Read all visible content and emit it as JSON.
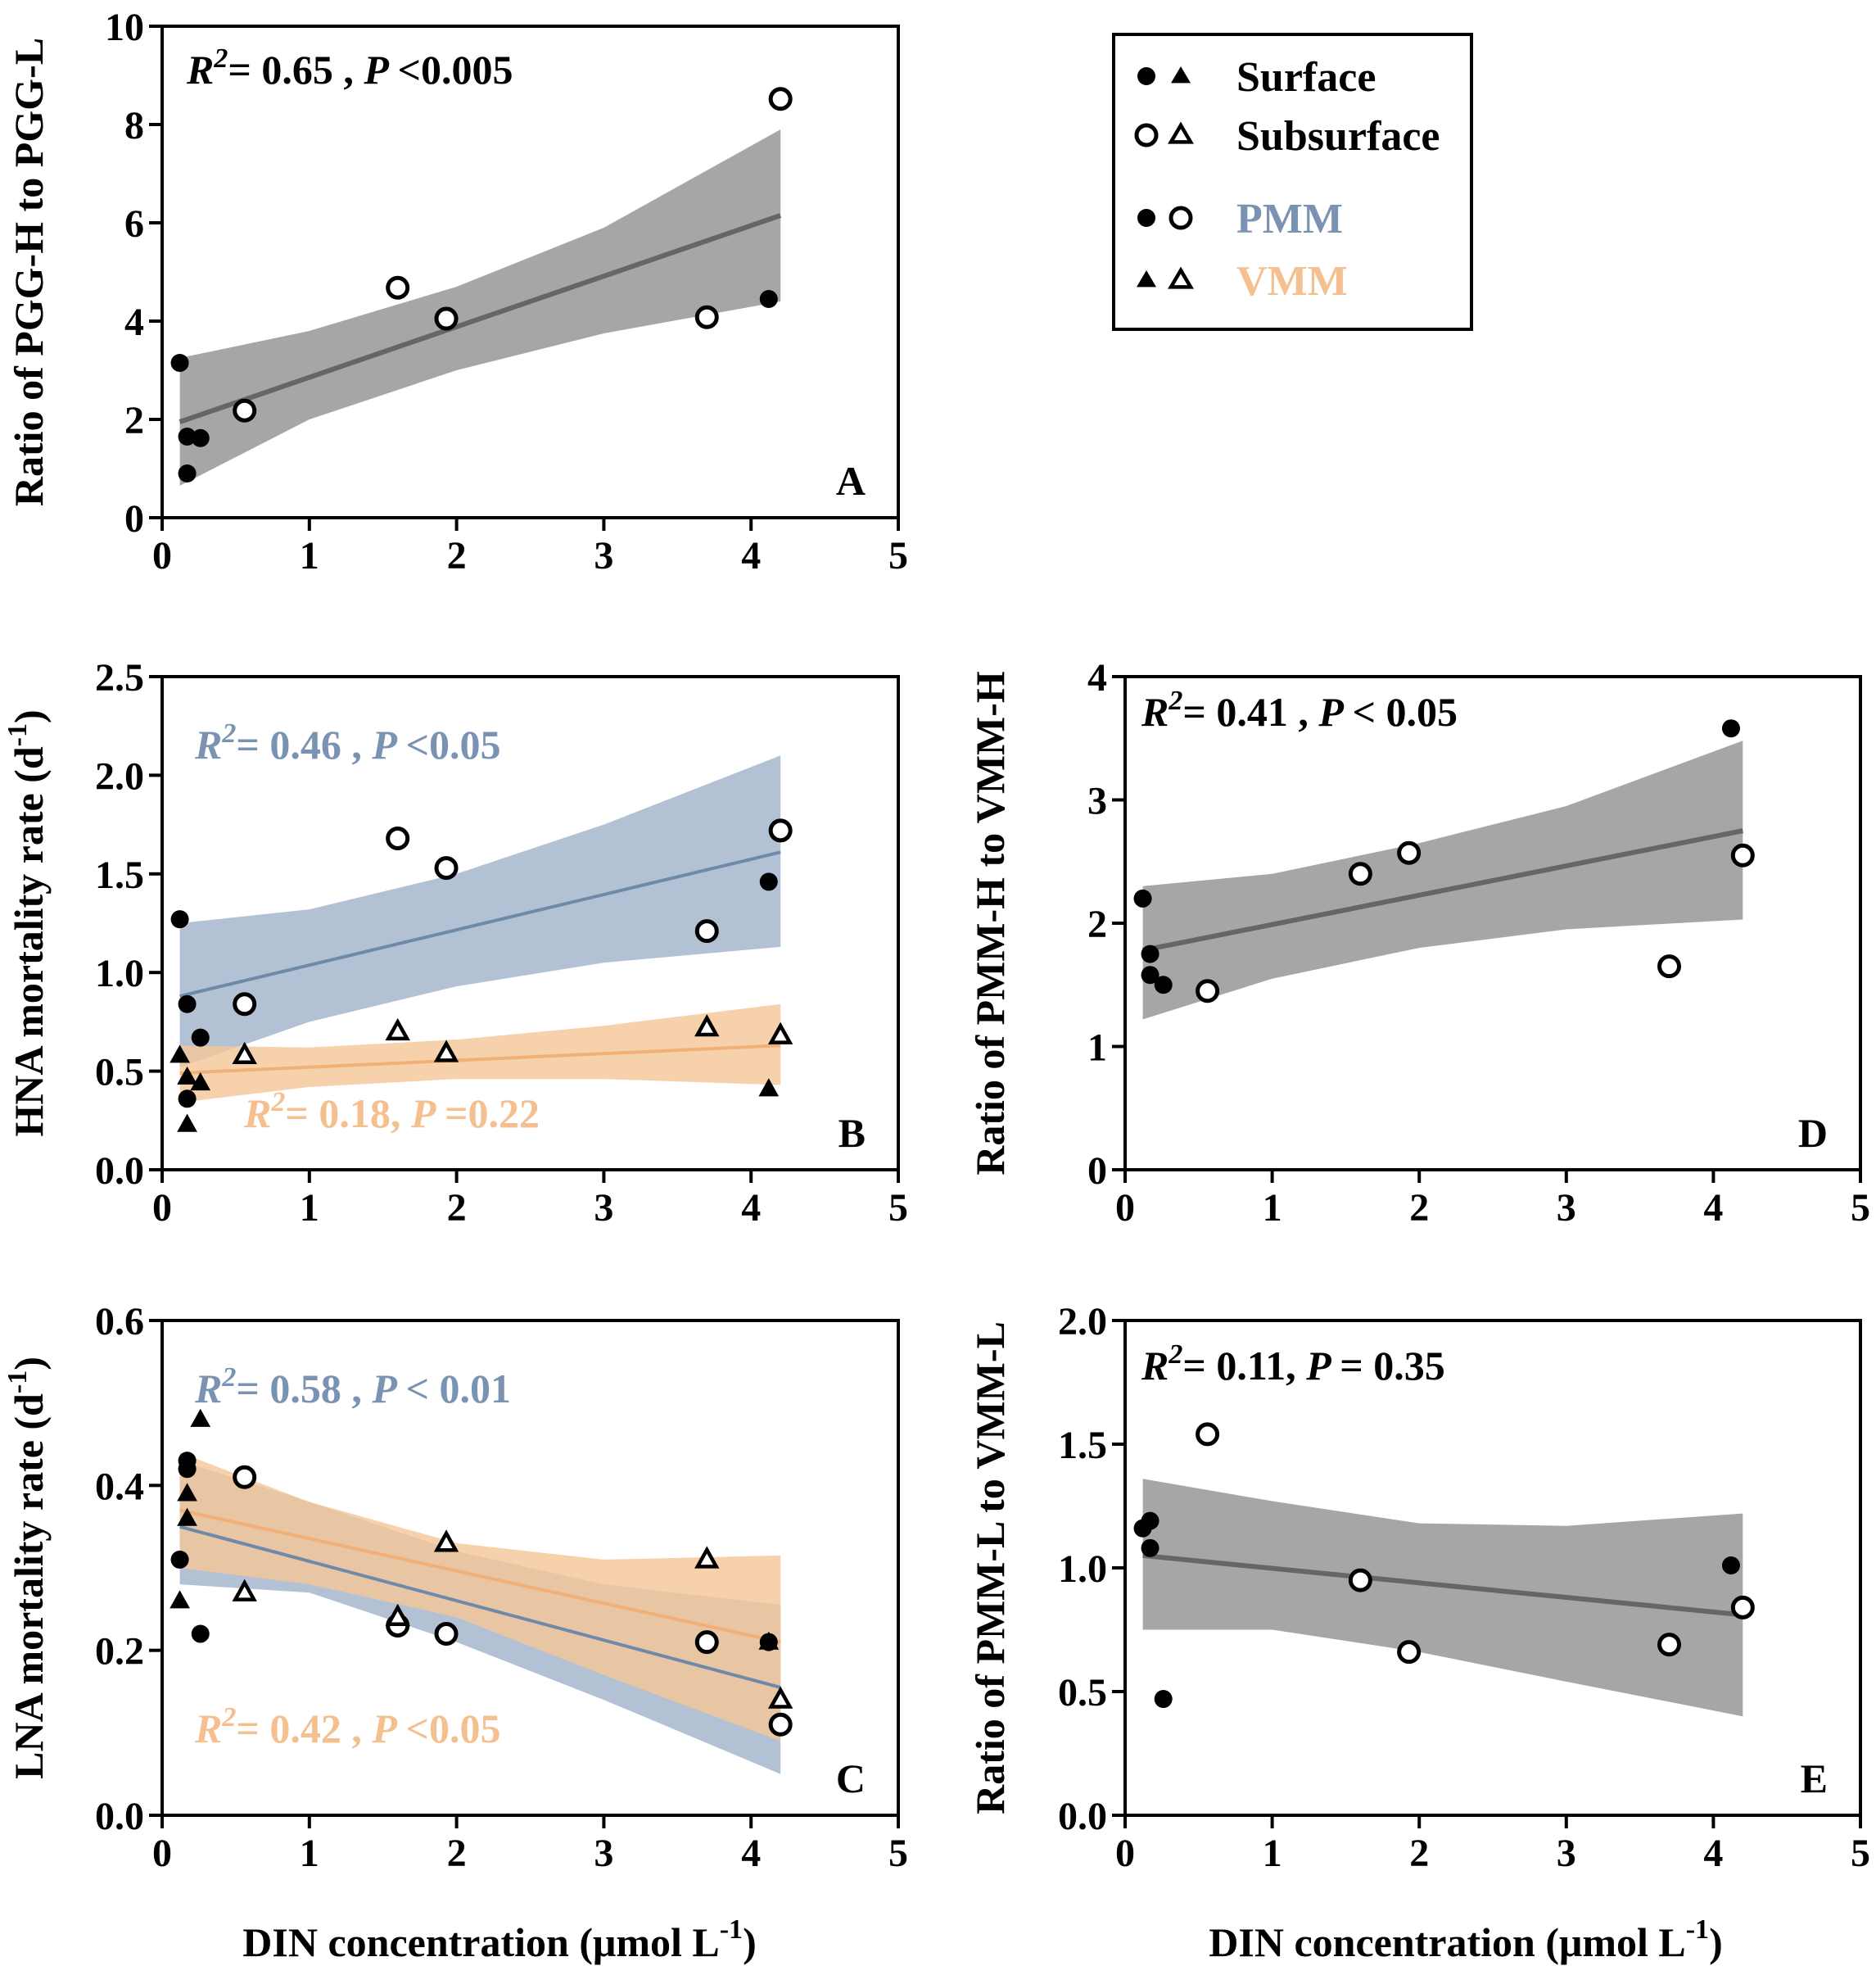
{
  "figure": {
    "x_axis_label_bottom": "DIN concentration (μmol L",
    "x_axis_label_sup": "-1",
    "x_axis_label_close": ")"
  },
  "legend": {
    "entries": [
      {
        "label": "Surface",
        "color": "#000000",
        "markers": [
          "filled-circle",
          "filled-triangle"
        ]
      },
      {
        "label": "Subsurface",
        "color": "#000000",
        "markers": [
          "open-circle",
          "open-triangle"
        ]
      },
      {
        "label": "PMM",
        "color": "#7b93b2",
        "markers": [
          "filled-circle",
          "open-circle"
        ]
      },
      {
        "label": "VMM",
        "color": "#f4c08f",
        "markers": [
          "filled-triangle",
          "open-triangle"
        ]
      }
    ]
  },
  "colors": {
    "pmm_line": "#6f8aa8",
    "pmm_band": "#9fb1c9",
    "vmm_line": "#f1b078",
    "vmm_band": "#f5c596",
    "gray_line": "#666666",
    "gray_band": "#a6a6a6",
    "pmm_text": "#7b93b2",
    "vmm_text": "#f4c08f"
  },
  "chart_data": [
    {
      "id": "A",
      "type": "scatter",
      "panel_label": "A",
      "ylabel": "Ratio of PGG-H to PGG-L",
      "xlabel": "",
      "xlim": [
        0,
        5
      ],
      "ylim": [
        0,
        10
      ],
      "xticks": [
        "0",
        "1",
        "2",
        "3",
        "4",
        "5"
      ],
      "yticks": [
        "0",
        "2",
        "4",
        "6",
        "8",
        "10"
      ],
      "ytick_values": [
        0,
        2,
        4,
        6,
        8,
        10
      ],
      "stats": [
        {
          "r2": "0.65",
          "sep": " ,",
          "p": "<0.005",
          "color": "#000000"
        }
      ],
      "points": [
        {
          "x": 0.12,
          "y": 3.15,
          "m": "filled-circle"
        },
        {
          "x": 0.17,
          "y": 1.65,
          "m": "filled-circle"
        },
        {
          "x": 0.26,
          "y": 1.62,
          "m": "filled-circle"
        },
        {
          "x": 0.17,
          "y": 0.9,
          "m": "filled-circle"
        },
        {
          "x": 0.56,
          "y": 2.18,
          "m": "open-circle"
        },
        {
          "x": 1.6,
          "y": 4.68,
          "m": "open-circle"
        },
        {
          "x": 1.93,
          "y": 4.05,
          "m": "open-circle"
        },
        {
          "x": 3.7,
          "y": 4.08,
          "m": "open-circle"
        },
        {
          "x": 4.12,
          "y": 4.45,
          "m": "filled-circle"
        },
        {
          "x": 4.2,
          "y": 8.52,
          "m": "open-circle"
        }
      ],
      "fits": [
        {
          "group": "all",
          "color": "gray",
          "line": [
            [
              0.12,
              1.95
            ],
            [
              4.2,
              6.15
            ]
          ],
          "band_upper": [
            [
              0.12,
              3.25
            ],
            [
              1,
              3.8
            ],
            [
              2,
              4.7
            ],
            [
              3,
              5.9
            ],
            [
              4.2,
              7.9
            ]
          ],
          "band_lower": [
            [
              0.12,
              0.65
            ],
            [
              1,
              2.0
            ],
            [
              2,
              3.0
            ],
            [
              3,
              3.75
            ],
            [
              4.2,
              4.4
            ]
          ]
        }
      ]
    },
    {
      "id": "B",
      "type": "scatter",
      "panel_label": "B",
      "ylabel": "HNA mortality rate (d",
      "ylabel_sup": "-1",
      "ylabel_close": ")",
      "xlim": [
        0,
        5
      ],
      "ylim": [
        0,
        2.5
      ],
      "xticks": [
        "0",
        "1",
        "2",
        "3",
        "4",
        "5"
      ],
      "yticks": [
        "0.0",
        "0.5",
        "1.0",
        "1.5",
        "2.0",
        "2.5"
      ],
      "ytick_values": [
        0,
        0.5,
        1.0,
        1.5,
        2.0,
        2.5
      ],
      "stats": [
        {
          "r2": "0.46",
          "sep": " ,",
          "p": "<0.05",
          "color": "#7b93b2"
        },
        {
          "r2": "0.18",
          "sep": ",",
          "p": "=0.22",
          "color": "#f4c08f"
        }
      ],
      "points": [
        {
          "x": 0.12,
          "y": 1.27,
          "m": "filled-circle"
        },
        {
          "x": 0.17,
          "y": 0.84,
          "m": "filled-circle"
        },
        {
          "x": 0.26,
          "y": 0.67,
          "m": "filled-circle"
        },
        {
          "x": 0.17,
          "y": 0.36,
          "m": "filled-circle"
        },
        {
          "x": 0.56,
          "y": 0.84,
          "m": "open-circle"
        },
        {
          "x": 1.6,
          "y": 1.68,
          "m": "open-circle"
        },
        {
          "x": 1.93,
          "y": 1.53,
          "m": "open-circle"
        },
        {
          "x": 3.7,
          "y": 1.21,
          "m": "open-circle"
        },
        {
          "x": 4.12,
          "y": 1.46,
          "m": "filled-circle"
        },
        {
          "x": 4.2,
          "y": 1.72,
          "m": "open-circle"
        },
        {
          "x": 0.12,
          "y": 0.58,
          "m": "filled-triangle"
        },
        {
          "x": 0.17,
          "y": 0.47,
          "m": "filled-triangle"
        },
        {
          "x": 0.26,
          "y": 0.44,
          "m": "filled-triangle"
        },
        {
          "x": 0.17,
          "y": 0.23,
          "m": "filled-triangle"
        },
        {
          "x": 0.56,
          "y": 0.58,
          "m": "open-triangle"
        },
        {
          "x": 1.6,
          "y": 0.7,
          "m": "open-triangle"
        },
        {
          "x": 1.93,
          "y": 0.59,
          "m": "open-triangle"
        },
        {
          "x": 3.7,
          "y": 0.72,
          "m": "open-triangle"
        },
        {
          "x": 4.12,
          "y": 0.41,
          "m": "filled-triangle"
        },
        {
          "x": 4.2,
          "y": 0.68,
          "m": "open-triangle"
        }
      ],
      "fits": [
        {
          "group": "PMM",
          "color": "pmm",
          "line": [
            [
              0.12,
              0.88
            ],
            [
              4.2,
              1.61
            ]
          ],
          "band_upper": [
            [
              0.12,
              1.25
            ],
            [
              1,
              1.32
            ],
            [
              2,
              1.5
            ],
            [
              3,
              1.75
            ],
            [
              4.2,
              2.1
            ]
          ],
          "band_lower": [
            [
              0.12,
              0.52
            ],
            [
              1,
              0.75
            ],
            [
              2,
              0.93
            ],
            [
              3,
              1.05
            ],
            [
              4.2,
              1.13
            ]
          ]
        },
        {
          "group": "VMM",
          "color": "vmm",
          "line": [
            [
              0.12,
              0.49
            ],
            [
              4.2,
              0.63
            ]
          ],
          "band_upper": [
            [
              0.12,
              0.63
            ],
            [
              1,
              0.62
            ],
            [
              2,
              0.66
            ],
            [
              3,
              0.73
            ],
            [
              4.2,
              0.84
            ]
          ],
          "band_lower": [
            [
              0.12,
              0.34
            ],
            [
              1,
              0.42
            ],
            [
              2,
              0.46
            ],
            [
              3,
              0.46
            ],
            [
              4.2,
              0.43
            ]
          ]
        }
      ]
    },
    {
      "id": "C",
      "type": "scatter",
      "panel_label": "C",
      "ylabel": "LNA mortality rate (d",
      "ylabel_sup": "-1",
      "ylabel_close": ")",
      "xlim": [
        0,
        5
      ],
      "ylim": [
        0,
        0.6
      ],
      "xticks": [
        "0",
        "1",
        "2",
        "3",
        "4",
        "5"
      ],
      "yticks": [
        "0.0",
        "0.2",
        "0.4",
        "0.6"
      ],
      "ytick_values": [
        0,
        0.2,
        0.4,
        0.6
      ],
      "stats": [
        {
          "r2": "0.58",
          "sep": " ,",
          "p": "< 0.01",
          "color": "#7b93b2"
        },
        {
          "r2": "0.42",
          "sep": " ,",
          "p": "<0.05",
          "color": "#f4c08f"
        }
      ],
      "points": [
        {
          "x": 0.12,
          "y": 0.31,
          "m": "filled-circle"
        },
        {
          "x": 0.17,
          "y": 0.43,
          "m": "filled-circle"
        },
        {
          "x": 0.17,
          "y": 0.42,
          "m": "filled-circle"
        },
        {
          "x": 0.26,
          "y": 0.22,
          "m": "filled-circle"
        },
        {
          "x": 0.56,
          "y": 0.41,
          "m": "open-circle"
        },
        {
          "x": 1.6,
          "y": 0.23,
          "m": "open-circle"
        },
        {
          "x": 1.93,
          "y": 0.22,
          "m": "open-circle"
        },
        {
          "x": 3.7,
          "y": 0.21,
          "m": "open-circle"
        },
        {
          "x": 4.12,
          "y": 0.21,
          "m": "filled-circle"
        },
        {
          "x": 4.2,
          "y": 0.11,
          "m": "open-circle"
        },
        {
          "x": 0.12,
          "y": 0.26,
          "m": "filled-triangle"
        },
        {
          "x": 0.17,
          "y": 0.39,
          "m": "filled-triangle"
        },
        {
          "x": 0.17,
          "y": 0.36,
          "m": "filled-triangle"
        },
        {
          "x": 0.26,
          "y": 0.48,
          "m": "filled-triangle"
        },
        {
          "x": 0.56,
          "y": 0.27,
          "m": "open-triangle"
        },
        {
          "x": 1.6,
          "y": 0.24,
          "m": "open-triangle"
        },
        {
          "x": 1.93,
          "y": 0.33,
          "m": "open-triangle"
        },
        {
          "x": 3.7,
          "y": 0.31,
          "m": "open-triangle"
        },
        {
          "x": 4.12,
          "y": 0.21,
          "m": "filled-triangle"
        },
        {
          "x": 4.2,
          "y": 0.14,
          "m": "open-triangle"
        }
      ],
      "fits": [
        {
          "group": "PMM",
          "color": "pmm",
          "line": [
            [
              0.12,
              0.35
            ],
            [
              4.2,
              0.155
            ]
          ],
          "band_upper": [
            [
              0.12,
              0.43
            ],
            [
              1,
              0.38
            ],
            [
              2,
              0.32
            ],
            [
              3,
              0.28
            ],
            [
              4.2,
              0.255
            ]
          ],
          "band_lower": [
            [
              0.12,
              0.28
            ],
            [
              1,
              0.27
            ],
            [
              2,
              0.21
            ],
            [
              3,
              0.14
            ],
            [
              4.2,
              0.05
            ]
          ]
        },
        {
          "group": "VMM",
          "color": "vmm",
          "line": [
            [
              0.12,
              0.37
            ],
            [
              4.2,
              0.21
            ]
          ],
          "band_upper": [
            [
              0.12,
              0.44
            ],
            [
              1,
              0.38
            ],
            [
              2,
              0.33
            ],
            [
              3,
              0.31
            ],
            [
              4.2,
              0.315
            ]
          ],
          "band_lower": [
            [
              0.12,
              0.3
            ],
            [
              1,
              0.28
            ],
            [
              2,
              0.24
            ],
            [
              3,
              0.17
            ],
            [
              4.2,
              0.09
            ]
          ]
        }
      ]
    },
    {
      "id": "D",
      "type": "scatter",
      "panel_label": "D",
      "ylabel": "Ratio of PMM-H to VMM-H",
      "xlim": [
        0,
        5
      ],
      "ylim": [
        0,
        4
      ],
      "xticks": [
        "0",
        "1",
        "2",
        "3",
        "4",
        "5"
      ],
      "yticks": [
        "0",
        "1",
        "2",
        "3",
        "4"
      ],
      "ytick_values": [
        0,
        1,
        2,
        3,
        4
      ],
      "stats": [
        {
          "r2": "0.41",
          "sep": " ,",
          "p": "< 0.05",
          "color": "#000000"
        }
      ],
      "points": [
        {
          "x": 0.12,
          "y": 2.2,
          "m": "filled-circle"
        },
        {
          "x": 0.17,
          "y": 1.75,
          "m": "filled-circle"
        },
        {
          "x": 0.17,
          "y": 1.58,
          "m": "filled-circle"
        },
        {
          "x": 0.26,
          "y": 1.5,
          "m": "filled-circle"
        },
        {
          "x": 0.56,
          "y": 1.45,
          "m": "open-circle"
        },
        {
          "x": 1.6,
          "y": 2.4,
          "m": "open-circle"
        },
        {
          "x": 1.93,
          "y": 2.57,
          "m": "open-circle"
        },
        {
          "x": 3.7,
          "y": 1.65,
          "m": "open-circle"
        },
        {
          "x": 4.12,
          "y": 3.58,
          "m": "filled-circle"
        },
        {
          "x": 4.2,
          "y": 2.55,
          "m": "open-circle"
        }
      ],
      "fits": [
        {
          "group": "all",
          "color": "gray",
          "line": [
            [
              0.12,
              1.78
            ],
            [
              4.2,
              2.75
            ]
          ],
          "band_upper": [
            [
              0.12,
              2.3
            ],
            [
              1,
              2.4
            ],
            [
              2,
              2.65
            ],
            [
              3,
              2.95
            ],
            [
              4.2,
              3.48
            ]
          ],
          "band_lower": [
            [
              0.12,
              1.22
            ],
            [
              1,
              1.55
            ],
            [
              2,
              1.8
            ],
            [
              3,
              1.95
            ],
            [
              4.2,
              2.03
            ]
          ]
        }
      ]
    },
    {
      "id": "E",
      "type": "scatter",
      "panel_label": "E",
      "ylabel": "Ratio of PMM-L to VMM-L",
      "xlim": [
        0,
        5
      ],
      "ylim": [
        0,
        2
      ],
      "xticks": [
        "0",
        "1",
        "2",
        "3",
        "4",
        "5"
      ],
      "yticks": [
        "0.0",
        "0.5",
        "1.0",
        "1.5",
        "2.0"
      ],
      "ytick_values": [
        0,
        0.5,
        1.0,
        1.5,
        2.0
      ],
      "stats": [
        {
          "r2": "0.11",
          "sep": ",",
          "p": "= 0.35",
          "color": "#000000"
        }
      ],
      "points": [
        {
          "x": 0.12,
          "y": 1.16,
          "m": "filled-circle"
        },
        {
          "x": 0.17,
          "y": 1.19,
          "m": "filled-circle"
        },
        {
          "x": 0.17,
          "y": 1.08,
          "m": "filled-circle"
        },
        {
          "x": 0.26,
          "y": 0.47,
          "m": "filled-circle"
        },
        {
          "x": 0.56,
          "y": 1.54,
          "m": "open-circle"
        },
        {
          "x": 1.6,
          "y": 0.95,
          "m": "open-circle"
        },
        {
          "x": 1.93,
          "y": 0.66,
          "m": "open-circle"
        },
        {
          "x": 3.7,
          "y": 0.69,
          "m": "open-circle"
        },
        {
          "x": 4.12,
          "y": 1.01,
          "m": "filled-circle"
        },
        {
          "x": 4.2,
          "y": 0.84,
          "m": "open-circle"
        }
      ],
      "fits": [
        {
          "group": "all",
          "color": "gray",
          "line": [
            [
              0.12,
              1.05
            ],
            [
              4.2,
              0.81
            ]
          ],
          "band_upper": [
            [
              0.12,
              1.36
            ],
            [
              1,
              1.27
            ],
            [
              2,
              1.18
            ],
            [
              3,
              1.17
            ],
            [
              4.2,
              1.22
            ]
          ],
          "band_lower": [
            [
              0.12,
              0.75
            ],
            [
              1,
              0.75
            ],
            [
              2,
              0.66
            ],
            [
              3,
              0.54
            ],
            [
              4.2,
              0.4
            ]
          ]
        }
      ]
    }
  ]
}
